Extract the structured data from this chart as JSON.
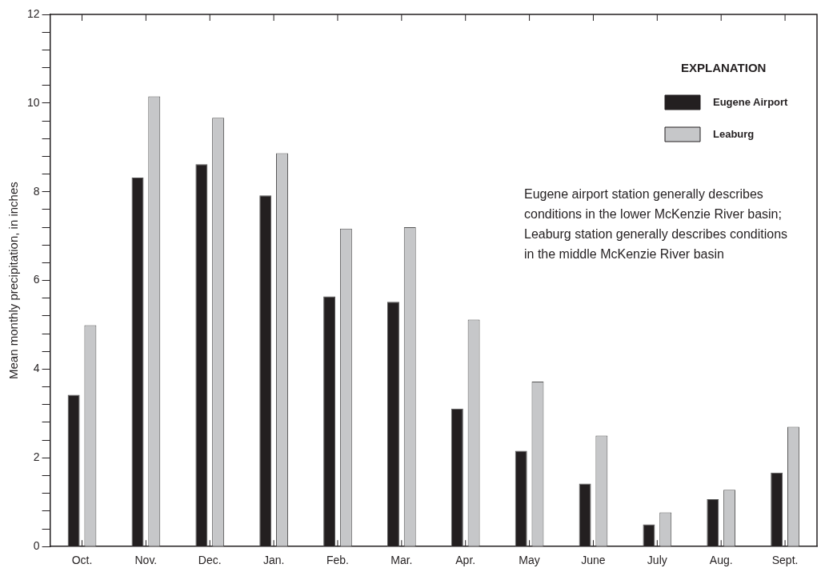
{
  "chart_data": {
    "type": "bar",
    "ylabel": "Mean monthly precipitation, in inches",
    "legend_title": "EXPLANATION",
    "legend": "top right",
    "grid": false,
    "categories": [
      "Oct.",
      "Nov.",
      "Dec.",
      "Jan.",
      "Feb.",
      "Mar.",
      "Apr.",
      "May",
      "June",
      "July",
      "Aug.",
      "Sept."
    ],
    "series": [
      {
        "name": "Eugene Airport",
        "color": "#231f20",
        "values": [
          3.42,
          8.32,
          8.62,
          7.92,
          5.64,
          5.52,
          3.11,
          2.16,
          1.42,
          0.5,
          1.07,
          1.67
        ]
      },
      {
        "name": "Leaburg",
        "color": "#c6c7c9",
        "values": [
          4.99,
          10.15,
          9.67,
          8.87,
          7.17,
          7.2,
          5.12,
          3.72,
          2.5,
          0.77,
          1.28,
          2.7
        ]
      }
    ],
    "ylim": [
      0,
      12
    ],
    "yticks": [
      0,
      {
        "value": 0.4,
        "label": null
      },
      {
        "value": 0.8,
        "label": null
      },
      {
        "value": 1.2,
        "label": null
      },
      {
        "value": 1.6,
        "label": null
      },
      2,
      {
        "value": 2.4,
        "label": null
      },
      {
        "value": 2.8,
        "label": null
      },
      {
        "value": 3.2,
        "label": null
      },
      {
        "value": 3.6,
        "label": null
      },
      4,
      {
        "value": 4.4,
        "label": null
      },
      {
        "value": 4.8,
        "label": null
      },
      {
        "value": 5.2,
        "label": null
      },
      {
        "value": 5.6,
        "label": null
      },
      6,
      {
        "value": 6.4,
        "label": null
      },
      {
        "value": 6.8,
        "label": null
      },
      {
        "value": 7.2,
        "label": null
      },
      {
        "value": 7.6,
        "label": null
      },
      8,
      {
        "value": 8.4,
        "label": null
      },
      {
        "value": 8.8,
        "label": null
      },
      {
        "value": 9.2,
        "label": null
      },
      {
        "value": 9.6,
        "label": null
      },
      10,
      {
        "value": 10.4,
        "label": null
      },
      {
        "value": 10.8,
        "label": null
      },
      {
        "value": 11.2,
        "label": null
      },
      {
        "value": 11.6,
        "label": null
      },
      12
    ],
    "annotations": [
      "Eugene airport station generally describes conditions in the lower McKenzie River basin; Leaburg station generally describes conditions in the middle McKenzie River basin"
    ]
  }
}
